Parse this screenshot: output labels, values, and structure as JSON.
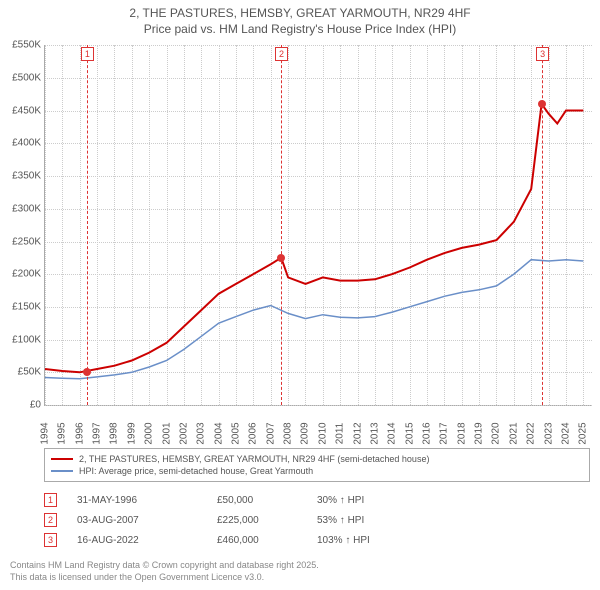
{
  "title": {
    "line1": "2, THE PASTURES, HEMSBY, GREAT YARMOUTH, NR29 4HF",
    "line2": "Price paid vs. HM Land Registry's House Price Index (HPI)"
  },
  "chart": {
    "background": "#ffffff",
    "grid_color": "#cccccc",
    "axis_color": "#aaaaaa",
    "label_color": "#555555",
    "label_fontsize": 10,
    "yaxis": {
      "min": 0,
      "max": 550,
      "ticks": [
        0,
        50,
        100,
        150,
        200,
        250,
        300,
        350,
        400,
        450,
        500,
        550
      ],
      "tick_labels": [
        "£0",
        "£50K",
        "£100K",
        "£150K",
        "£200K",
        "£250K",
        "£300K",
        "£350K",
        "£400K",
        "£450K",
        "£500K",
        "£550K"
      ]
    },
    "xaxis": {
      "min": 1994,
      "max": 2025.5,
      "ticks": [
        1994,
        1995,
        1996,
        1997,
        1998,
        1999,
        2000,
        2001,
        2002,
        2003,
        2004,
        2005,
        2006,
        2007,
        2008,
        2009,
        2010,
        2011,
        2012,
        2013,
        2014,
        2015,
        2016,
        2017,
        2018,
        2019,
        2020,
        2021,
        2022,
        2023,
        2024,
        2025
      ]
    },
    "series": [
      {
        "name": "2, THE PASTURES, HEMSBY, GREAT YARMOUTH, NR29 4HF (semi-detached house)",
        "color": "#cc0000",
        "width": 2,
        "data": [
          [
            1994,
            55
          ],
          [
            1995,
            52
          ],
          [
            1996,
            50
          ],
          [
            1997,
            55
          ],
          [
            1998,
            60
          ],
          [
            1999,
            68
          ],
          [
            2000,
            80
          ],
          [
            2001,
            95
          ],
          [
            2002,
            120
          ],
          [
            2003,
            145
          ],
          [
            2004,
            170
          ],
          [
            2005,
            185
          ],
          [
            2006,
            200
          ],
          [
            2007,
            215
          ],
          [
            2007.6,
            225
          ],
          [
            2008,
            195
          ],
          [
            2009,
            185
          ],
          [
            2010,
            195
          ],
          [
            2011,
            190
          ],
          [
            2012,
            190
          ],
          [
            2013,
            192
          ],
          [
            2014,
            200
          ],
          [
            2015,
            210
          ],
          [
            2016,
            222
          ],
          [
            2017,
            232
          ],
          [
            2018,
            240
          ],
          [
            2019,
            245
          ],
          [
            2020,
            252
          ],
          [
            2021,
            280
          ],
          [
            2022,
            330
          ],
          [
            2022.6,
            460
          ],
          [
            2023,
            445
          ],
          [
            2023.5,
            430
          ],
          [
            2024,
            450
          ],
          [
            2025,
            450
          ]
        ]
      },
      {
        "name": "HPI: Average price, semi-detached house, Great Yarmouth",
        "color": "#6a8fc8",
        "width": 1.5,
        "data": [
          [
            1994,
            42
          ],
          [
            1995,
            41
          ],
          [
            1996,
            40
          ],
          [
            1997,
            43
          ],
          [
            1998,
            46
          ],
          [
            1999,
            50
          ],
          [
            2000,
            58
          ],
          [
            2001,
            68
          ],
          [
            2002,
            85
          ],
          [
            2003,
            105
          ],
          [
            2004,
            125
          ],
          [
            2005,
            135
          ],
          [
            2006,
            145
          ],
          [
            2007,
            152
          ],
          [
            2008,
            140
          ],
          [
            2009,
            132
          ],
          [
            2010,
            138
          ],
          [
            2011,
            134
          ],
          [
            2012,
            133
          ],
          [
            2013,
            135
          ],
          [
            2014,
            142
          ],
          [
            2015,
            150
          ],
          [
            2016,
            158
          ],
          [
            2017,
            166
          ],
          [
            2018,
            172
          ],
          [
            2019,
            176
          ],
          [
            2020,
            182
          ],
          [
            2021,
            200
          ],
          [
            2022,
            222
          ],
          [
            2023,
            220
          ],
          [
            2024,
            222
          ],
          [
            2025,
            220
          ]
        ]
      }
    ],
    "sales": [
      {
        "n": 1,
        "year": 1996.41,
        "price": 50,
        "marker_top": true
      },
      {
        "n": 2,
        "year": 2007.59,
        "price": 225,
        "marker_top": true
      },
      {
        "n": 3,
        "year": 2022.63,
        "price": 460,
        "marker_top": true
      }
    ],
    "sale_line_color": "#dd4444"
  },
  "sale_table": [
    {
      "n": "1",
      "date": "31-MAY-1996",
      "price": "£50,000",
      "delta": "30% ↑ HPI"
    },
    {
      "n": "2",
      "date": "03-AUG-2007",
      "price": "£225,000",
      "delta": "53% ↑ HPI"
    },
    {
      "n": "3",
      "date": "16-AUG-2022",
      "price": "£460,000",
      "delta": "103% ↑ HPI"
    }
  ],
  "footnote": {
    "line1": "Contains HM Land Registry data © Crown copyright and database right 2025.",
    "line2": "This data is licensed under the Open Government Licence v3.0."
  }
}
